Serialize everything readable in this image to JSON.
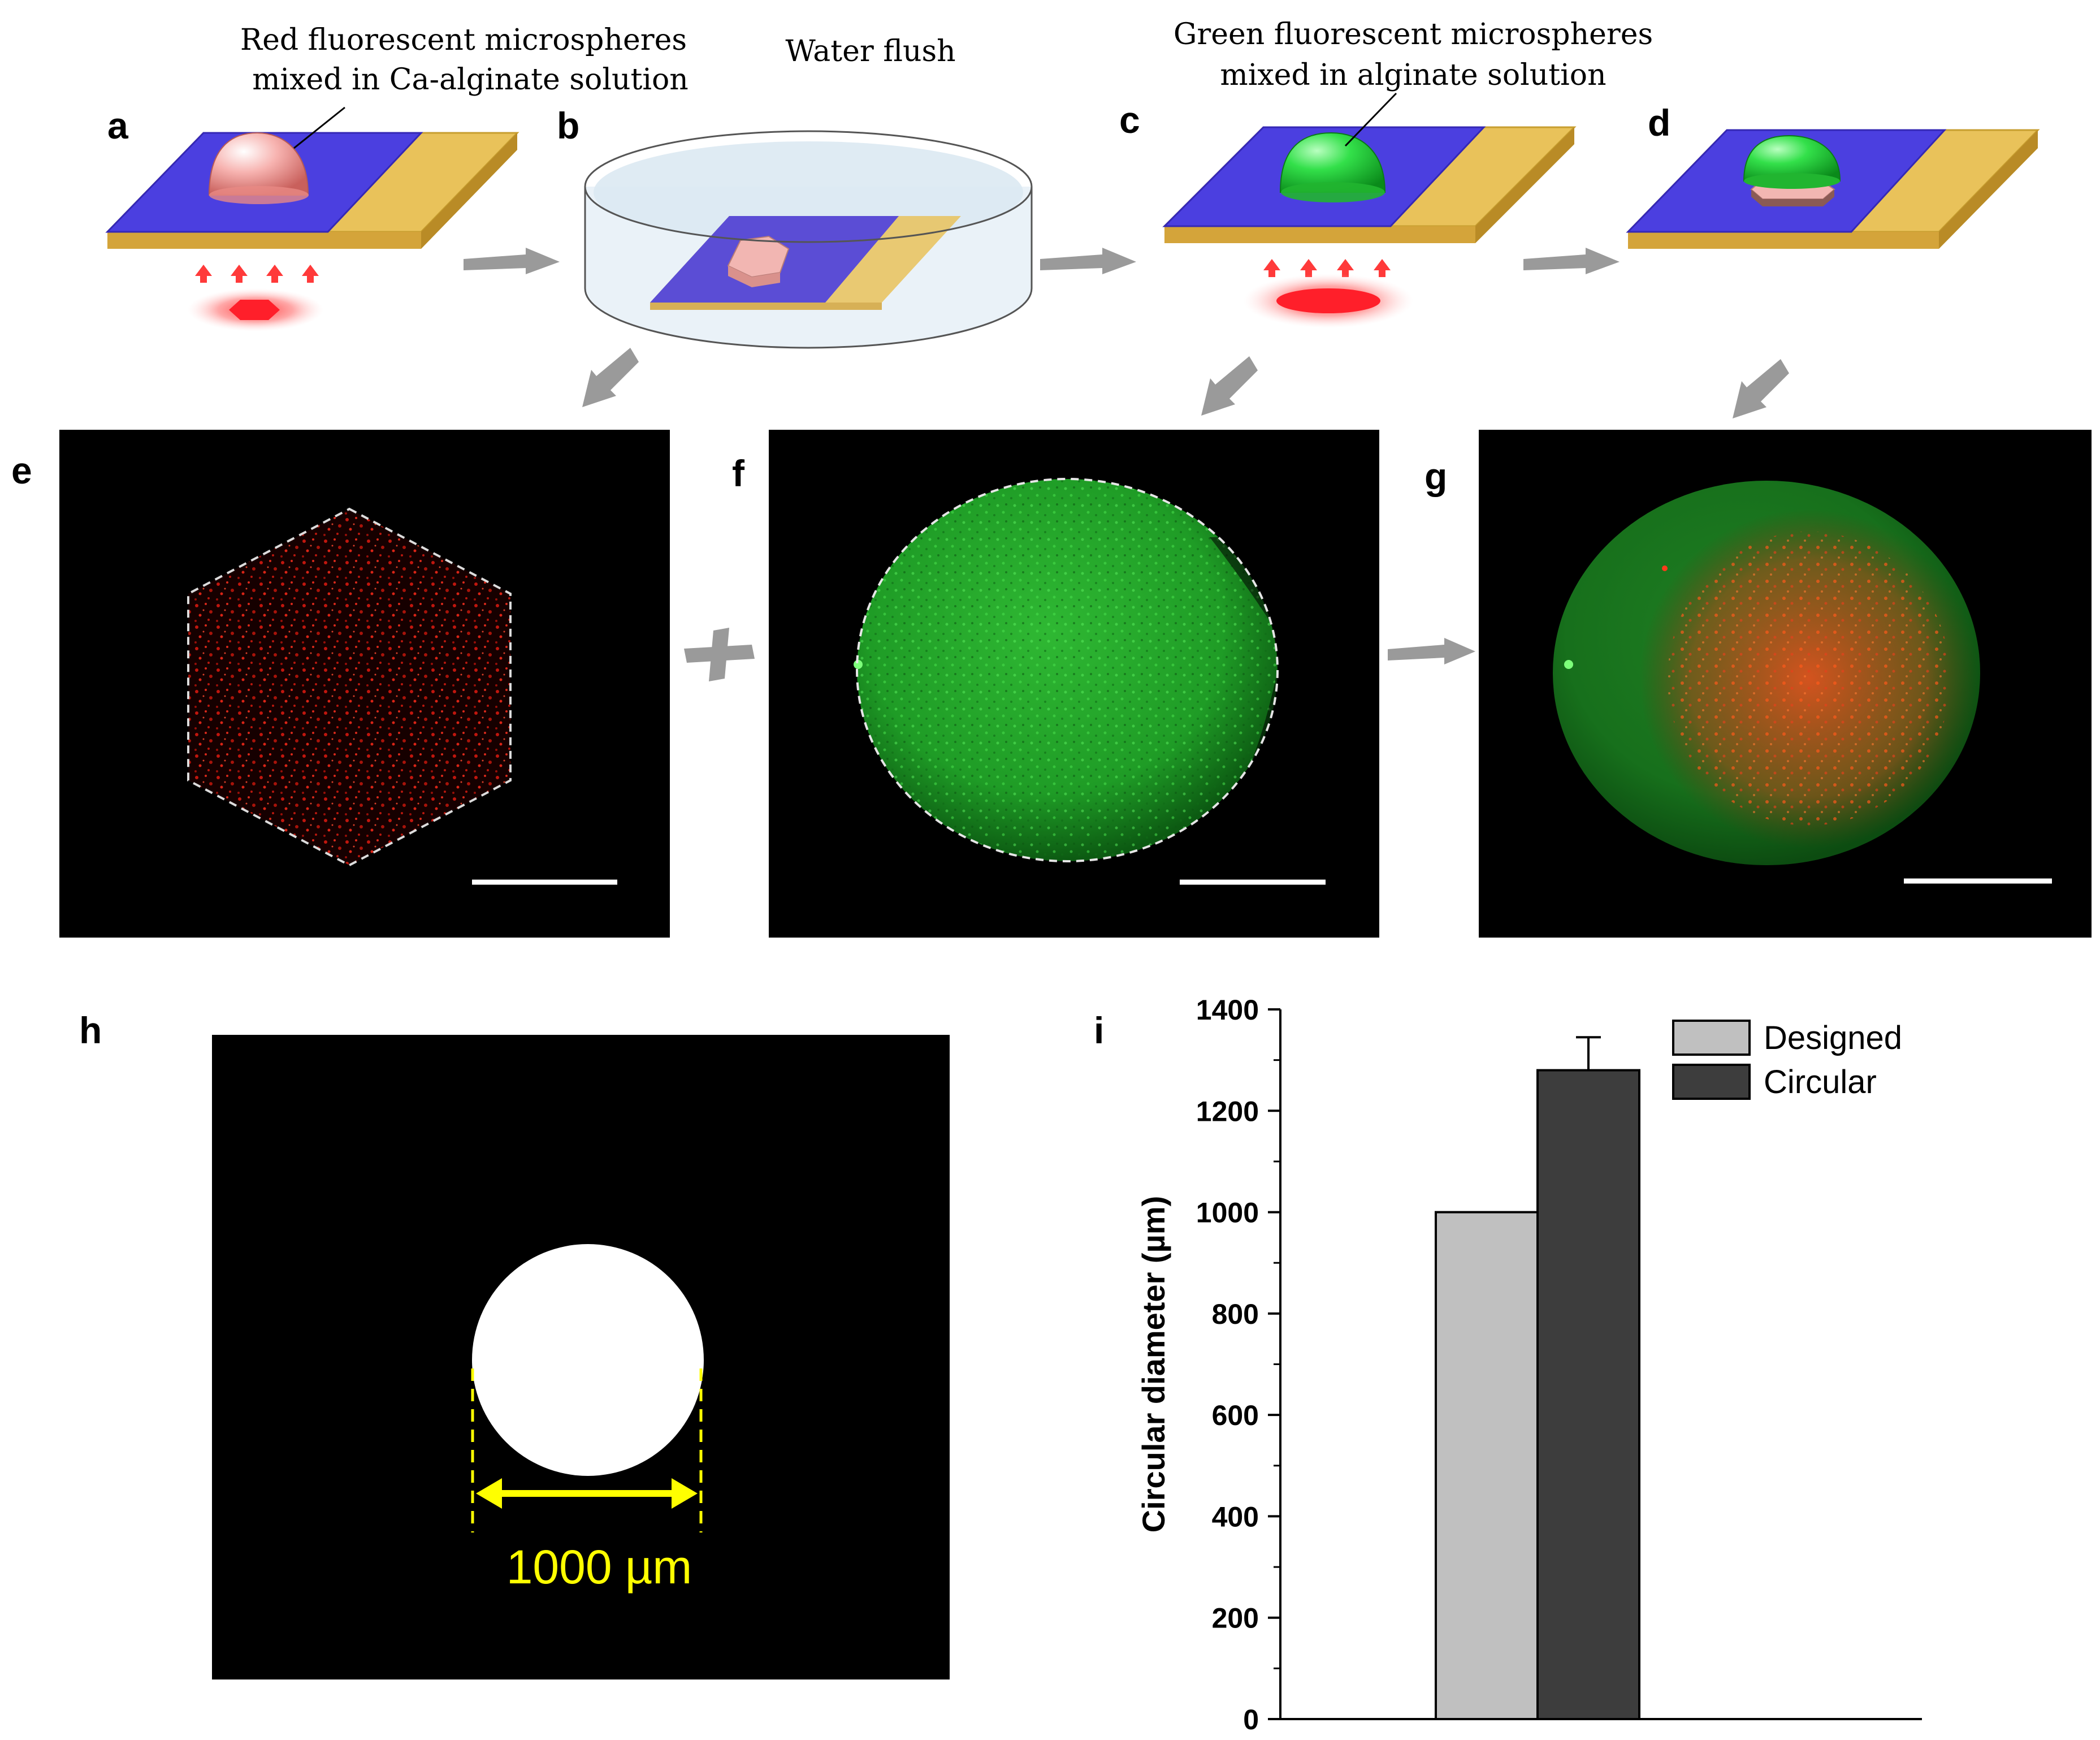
{
  "panels": {
    "a": {
      "letter": "a",
      "caption_line1": "Red fluorescent microspheres",
      "caption_line2": "mixed in Ca-alginate solution"
    },
    "b": {
      "letter": "b",
      "caption": "Water flush"
    },
    "c": {
      "letter": "c",
      "caption_line1": "Green fluorescent microspheres",
      "caption_line2": "mixed in alginate solution"
    },
    "d": {
      "letter": "d"
    },
    "e": {
      "letter": "e"
    },
    "f": {
      "letter": "f"
    },
    "g": {
      "letter": "g"
    },
    "h": {
      "letter": "h",
      "dimension_label": "1000 µm"
    },
    "i": {
      "letter": "i"
    }
  },
  "colors": {
    "substrate_blue": "#4b3fe0",
    "substrate_gold": "#e9c25a",
    "red_fluor": "#ff2a1a",
    "green_fluor": "#2ecf3a",
    "designed_bar": "#c0c0c0",
    "circular_bar": "#3d3d3d",
    "dimension_yellow": "#ffff00"
  },
  "chart_data": {
    "type": "bar",
    "categories": [
      "Designed",
      "Circular"
    ],
    "values": [
      1000,
      1280
    ],
    "errors": [
      0,
      65
    ],
    "ylabel": "Circular diameter (µm)",
    "xlabel": "",
    "ylim": [
      0,
      1400
    ],
    "yticks": [
      "0",
      "200",
      "400",
      "600",
      "800",
      "1000",
      "1200",
      "1400"
    ],
    "legend": [
      {
        "label": "Designed",
        "color": "#c0c0c0"
      },
      {
        "label": "Circular",
        "color": "#3d3d3d"
      }
    ],
    "legend_position": "top-right",
    "grid": false
  }
}
